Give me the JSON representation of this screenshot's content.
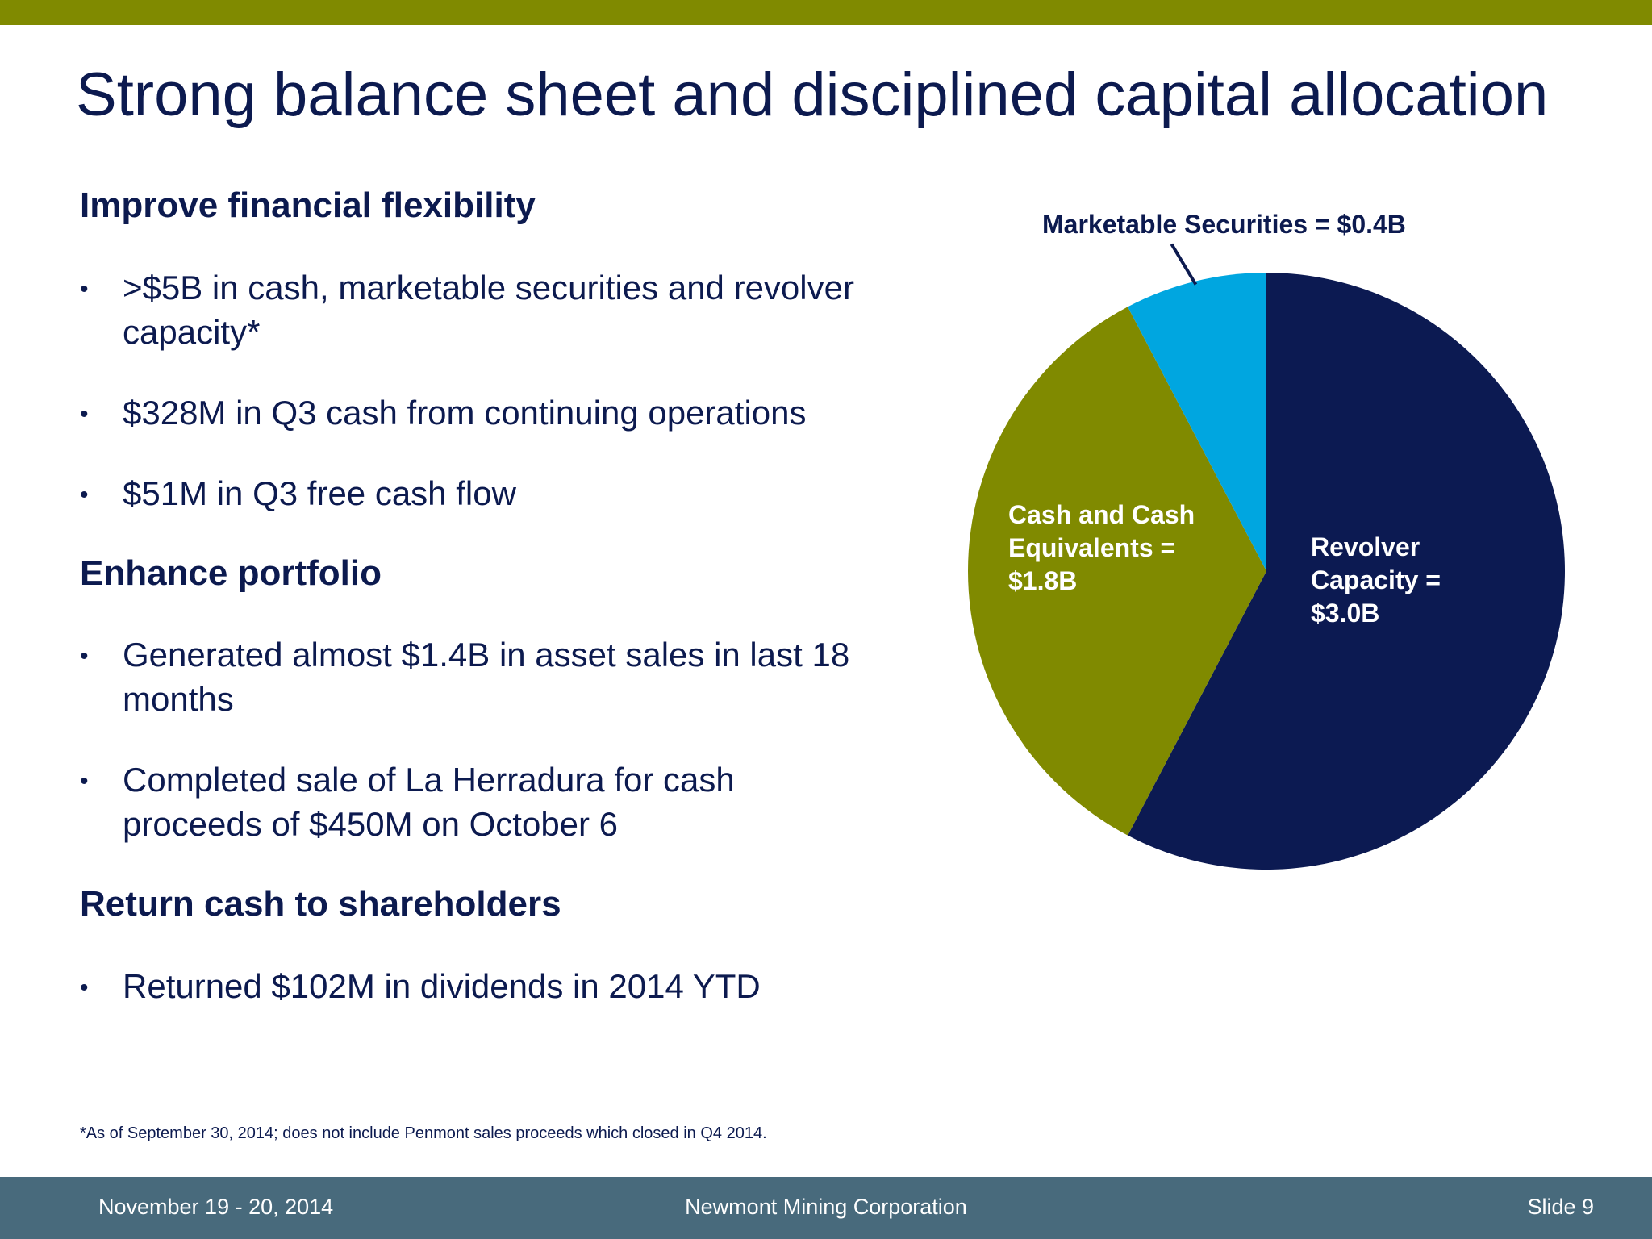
{
  "slide": {
    "title": "Strong balance sheet and disciplined capital allocation",
    "sections": [
      {
        "heading": "Improve financial flexibility",
        "bullets": [
          ">$5B in cash, marketable securities and revolver capacity*",
          "$328M in Q3 cash from continuing operations",
          "$51M in Q3 free cash flow"
        ]
      },
      {
        "heading": "Enhance portfolio",
        "bullets": [
          "Generated almost $1.4B in asset sales in last 18 months",
          "Completed sale of La Herradura for cash proceeds of $450M on October 6"
        ]
      },
      {
        "heading": "Return cash to shareholders",
        "bullets": [
          "Returned $102M in dividends in 2014 YTD"
        ]
      }
    ],
    "bullet_char": "•",
    "footnote": "*As of September 30, 2014; does not include Penmont sales proceeds which closed in Q4 2014."
  },
  "footer": {
    "date": "November 19 - 20, 2014",
    "company": "Newmont Mining Corporation",
    "slide_number": "Slide 9"
  },
  "colors": {
    "title_text": "#0c1a4f",
    "top_bar": "#808a00",
    "footer_bar": "#486a7c"
  },
  "chart_data": {
    "type": "pie",
    "title": "",
    "slices": [
      {
        "label": "Revolver Capacity = $3.0B",
        "lines": [
          "Revolver",
          "Capacity =",
          "$3.0B"
        ],
        "value": 3.0,
        "color": "#0c1a52"
      },
      {
        "label": "Cash and Cash Equivalents = $1.8B",
        "lines": [
          "Cash and Cash",
          "Equivalents =",
          "$1.8B"
        ],
        "value": 1.8,
        "color": "#808a00"
      },
      {
        "label": "Marketable Securities = $0.4B",
        "lines": [
          "Marketable Securities = $0.4B"
        ],
        "value": 0.4,
        "color": "#00a6e0"
      }
    ],
    "start": "12 o'clock",
    "direction": "clockwise",
    "legend": "none"
  }
}
